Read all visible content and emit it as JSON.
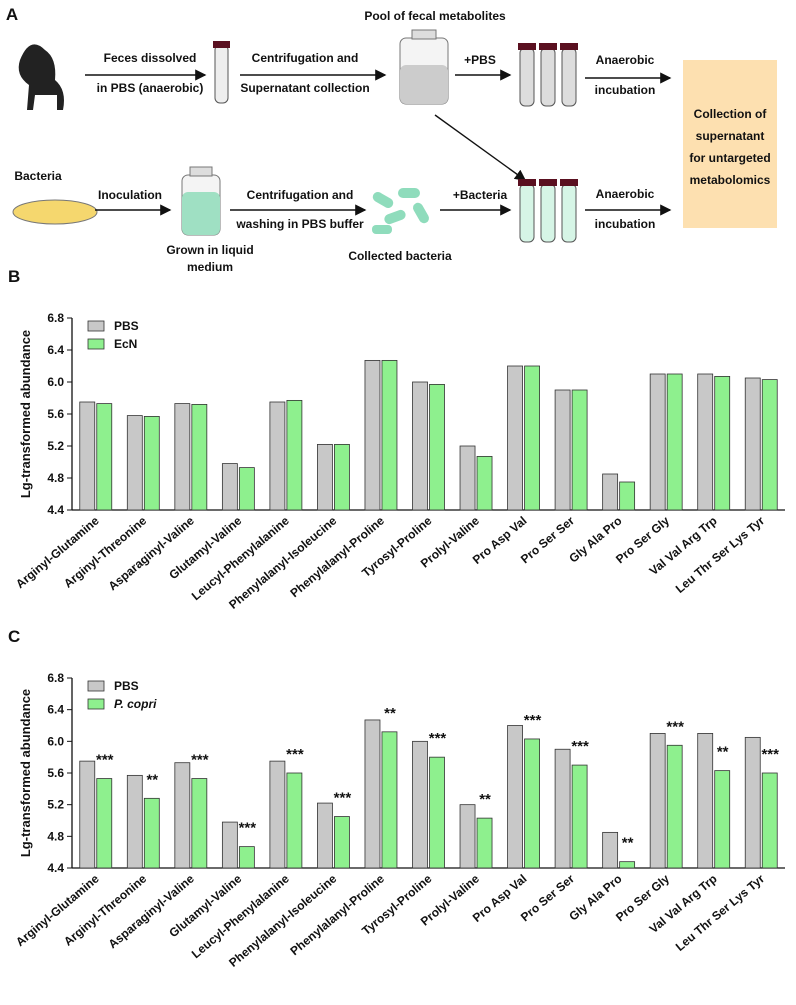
{
  "diagram": {
    "panel": "A",
    "labels": [
      "Feces dissolved",
      "in PBS (anaerobic)",
      "Centrifugation and",
      "Supernatant collection",
      "Pool of fecal metabolites",
      "+PBS",
      "Anaerobic",
      "incubation",
      "Collection of",
      "supernatant",
      "for untargeted",
      "metabolomics",
      "Bacteria",
      "Inoculation",
      "Grown in liquid",
      "medium",
      "Centrifugation and",
      "washing in  PBS buffer",
      "Collected bacteria",
      "+Bacteria",
      "Anaerobic",
      "incubation"
    ]
  },
  "chart_data": [
    {
      "panel": "B",
      "type": "bar",
      "ylabel": "Lg-transformed abundance",
      "categories": [
        "Arginyl-Glutamine",
        "Arginyl-Threonine",
        "Asparaginyl-Valine",
        "Glutamyl-Valine",
        "Leucyl-Phenylalanine",
        "Phenylalanyl-Isoleucine",
        "Phenylalanyl-Proline",
        "Tyrosyl-Proline",
        "Prolyl-Valine",
        "Pro Asp Val",
        "Pro Ser Ser",
        "Gly Ala Pro",
        "Pro Ser Gly",
        "Val Val Arg Trp",
        "Leu Thr Ser Lys Tyr"
      ],
      "series": [
        {
          "name": "PBS",
          "color": "#c8c8c8",
          "values": [
            5.75,
            5.58,
            5.73,
            4.98,
            5.75,
            5.22,
            6.27,
            6.0,
            5.2,
            6.2,
            5.9,
            4.85,
            6.1,
            6.1,
            6.05
          ]
        },
        {
          "name": "EcN",
          "color": "#8ef08e",
          "values": [
            5.73,
            5.57,
            5.72,
            4.93,
            5.77,
            5.22,
            6.27,
            5.97,
            5.07,
            6.2,
            5.9,
            4.75,
            6.1,
            6.07,
            6.03
          ]
        }
      ],
      "ylim": [
        4.4,
        6.8
      ],
      "yticks": [
        4.4,
        4.8,
        5.2,
        5.6,
        {
          "value": 6,
          "label": "6.0"
        },
        6.4,
        6.8
      ],
      "legend": "top-left"
    },
    {
      "panel": "C",
      "type": "bar",
      "ylabel": "Lg-transformed abundance",
      "categories": [
        "Arginyl-Glutamine",
        "Arginyl-Threonine",
        "Asparaginyl-Valine",
        "Glutamyl-Valine",
        "Leucyl-Phenylalanine",
        "Phenylalanyl-Isoleucine",
        "Phenylalanyl-Proline",
        "Tyrosyl-Proline",
        "Prolyl-Valine",
        "Pro Asp Val",
        "Pro Ser Ser",
        "Gly Ala Pro",
        "Pro Ser Gly",
        "Val Val Arg Trp",
        "Leu Thr Ser Lys Tyr"
      ],
      "series": [
        {
          "name": "PBS",
          "color": "#c8c8c8",
          "values": [
            5.75,
            5.57,
            5.73,
            4.98,
            5.75,
            5.22,
            6.27,
            6.0,
            5.2,
            6.2,
            5.9,
            4.85,
            6.1,
            6.1,
            6.05
          ]
        },
        {
          "name": "P. copri",
          "color": "#8ef08e",
          "values": [
            5.53,
            5.28,
            5.53,
            4.67,
            5.6,
            5.05,
            6.12,
            5.8,
            5.03,
            6.03,
            5.7,
            4.48,
            5.95,
            5.63,
            5.6
          ]
        }
      ],
      "annotations": [
        "***",
        "**",
        "***",
        "***",
        "***",
        "***",
        "**",
        "***",
        "**",
        "***",
        "***",
        "**",
        "***",
        "**",
        "***"
      ],
      "ylim": [
        4.4,
        6.8
      ],
      "yticks": [
        4.4,
        4.8,
        5.2,
        5.6,
        {
          "value": 6,
          "label": "6.0"
        },
        6.4,
        6.8
      ],
      "legend": "top-left"
    }
  ]
}
